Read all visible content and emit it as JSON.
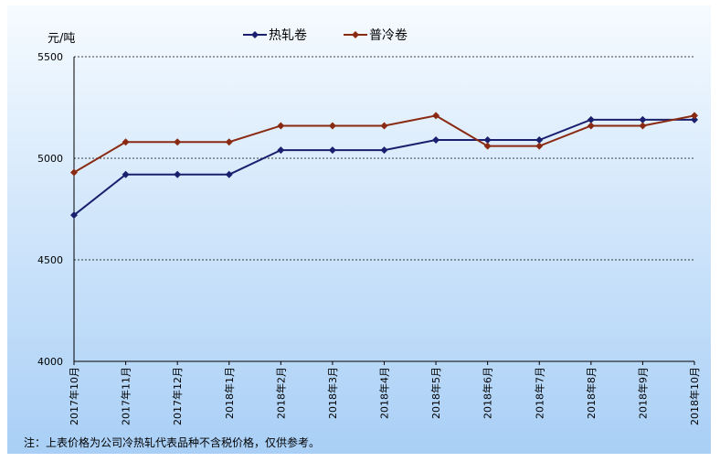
{
  "chart_data": {
    "type": "line",
    "unit_label": "元/吨",
    "categories": [
      "2017年10月",
      "2017年11月",
      "2017年12月",
      "2018年1月",
      "2018年2月",
      "2018年3月",
      "2018年4月",
      "2018年5月",
      "2018年6月",
      "2018年7月",
      "2018年8月",
      "2018年9月",
      "2018年10月"
    ],
    "series": [
      {
        "name": "热轧卷",
        "color": "#1a1f6e",
        "values": [
          4720,
          4920,
          4920,
          4920,
          5040,
          5040,
          5040,
          5090,
          5090,
          5090,
          5190,
          5190,
          5190
        ]
      },
      {
        "name": "普冷卷",
        "color": "#8a2a12",
        "values": [
          4930,
          5080,
          5080,
          5080,
          5160,
          5160,
          5160,
          5210,
          5060,
          5060,
          5160,
          5160,
          5210
        ]
      }
    ],
    "ylim": [
      4000,
      5500
    ],
    "yticks": [
      4000,
      4500,
      5000,
      5500
    ],
    "grid": true,
    "legend": "top-center",
    "note": "注：上表价格为公司冷热轧代表品种不含税价格，仅供参考。"
  },
  "colors": {
    "background_top": "#f6fbff",
    "background_bottom": "#a9cff6",
    "gridline": "#000000"
  }
}
